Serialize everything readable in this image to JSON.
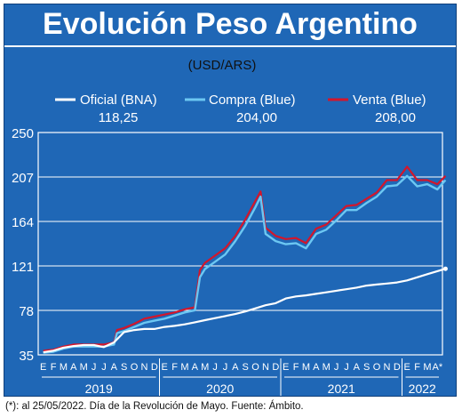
{
  "title": "Evolución Peso Argentino",
  "footnote": "(*): al 25/05/2022. Día de la Revolución de Mayo. Fuente: Ámbito.",
  "colors": {
    "background": "#1f67b6",
    "oficial": "#ffffff",
    "compra": "#6cc7f2",
    "venta": "#d3162b",
    "grid": "#ffffff"
  },
  "chart_data": {
    "type": "line",
    "title": "Evolución Peso Argentino",
    "unit_label": "(USD/ARS)",
    "ylim": [
      35,
      250
    ],
    "yticks": [
      "250",
      "207",
      "164",
      "121",
      "78",
      "35"
    ],
    "month_ticks": [
      "E",
      "F",
      "M",
      "A",
      "M",
      "J",
      "J",
      "A",
      "S",
      "O",
      "N",
      "D",
      "E",
      "F",
      "M",
      "A",
      "M",
      "J",
      "J",
      "A",
      "S",
      "O",
      "N",
      "D",
      "E",
      "F",
      "M",
      "A",
      "M",
      "J",
      "J",
      "A",
      "S",
      "O",
      "N",
      "D",
      "E",
      "F",
      "M",
      "A*"
    ],
    "years": [
      "2019",
      "2020",
      "2021",
      "2022"
    ],
    "grid": true,
    "legend_position": "top",
    "series": [
      {
        "name": "Oficial (BNA)",
        "last_value": "118,25",
        "color": "#ffffff",
        "x": [
          0,
          1,
          2,
          3,
          4,
          5,
          6,
          7,
          8,
          9,
          10,
          11,
          12,
          13,
          14,
          15,
          16,
          17,
          18,
          19,
          20,
          21,
          22,
          23,
          24,
          25,
          26,
          27,
          28,
          29,
          30,
          31,
          32,
          33,
          34,
          35,
          36,
          37,
          38,
          39.8
        ],
        "values": [
          37.5,
          39,
          42,
          43.5,
          44.5,
          44.5,
          42.5,
          47,
          57,
          59,
          60,
          60,
          62,
          63,
          64.5,
          66.5,
          68.5,
          70.5,
          72.5,
          74.5,
          77,
          80,
          83,
          85,
          89.5,
          91.5,
          92.5,
          94,
          95.5,
          97,
          98.5,
          100,
          102,
          103,
          104,
          105,
          107,
          110,
          113,
          118.25
        ]
      },
      {
        "name": "Compra (Blue)",
        "last_value": "204,00",
        "color": "#6cc7f2",
        "x": [
          0,
          1,
          2,
          3,
          4,
          5,
          6,
          7,
          7.3,
          8,
          9,
          10,
          11,
          12,
          13,
          14,
          15,
          15.5,
          16,
          17,
          18,
          19,
          20,
          21,
          21.5,
          22,
          23,
          24,
          25,
          26,
          27,
          28,
          29,
          30,
          31,
          32,
          33,
          34,
          35,
          36,
          37,
          38,
          39,
          39.8
        ],
        "values": [
          37,
          38,
          41,
          43,
          43,
          43,
          43,
          45,
          56,
          58,
          62,
          66,
          68,
          70,
          73,
          76,
          78,
          110,
          118,
          125,
          132,
          145,
          160,
          178,
          188,
          152,
          145,
          142,
          143,
          138,
          152,
          156,
          165,
          175,
          175,
          182,
          188,
          198,
          199,
          208,
          198,
          200,
          195,
          204
        ]
      },
      {
        "name": "Venta (Blue)",
        "last_value": "208,00",
        "color": "#d3162b",
        "x": [
          0,
          1,
          2,
          3,
          4,
          5,
          6,
          7,
          7.3,
          8,
          9,
          10,
          11,
          12,
          13,
          14,
          15,
          15.5,
          16,
          17,
          18,
          19,
          20,
          21,
          21.5,
          22,
          23,
          24,
          25,
          26,
          27,
          28,
          29,
          30,
          31,
          32,
          33,
          34,
          35,
          36,
          37,
          38,
          39,
          39.8
        ],
        "values": [
          39,
          40,
          43,
          45,
          45,
          45,
          45,
          47,
          59,
          61,
          65,
          70,
          72,
          74,
          76,
          79,
          81,
          117,
          124,
          131,
          138,
          150,
          166,
          184,
          193,
          158,
          150,
          147,
          148,
          143,
          157,
          161,
          170,
          179,
          180,
          186,
          192,
          204,
          204,
          217,
          204,
          204,
          200,
          208
        ]
      }
    ]
  }
}
